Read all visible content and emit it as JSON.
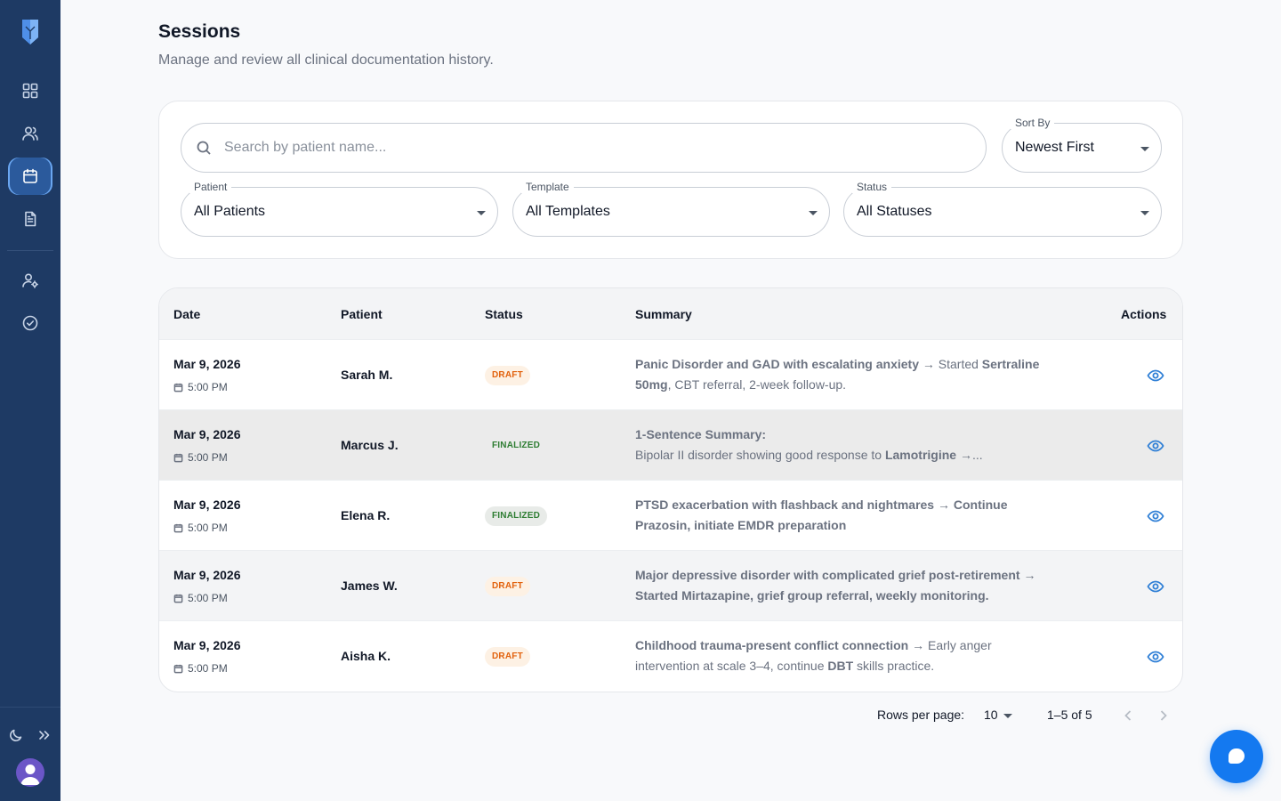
{
  "header": {
    "title": "Sessions",
    "subtitle": "Manage and review all clinical documentation history."
  },
  "sidebar": {
    "nav": [
      {
        "name": "dashboard",
        "icon": "grid-icon"
      },
      {
        "name": "patients",
        "icon": "users-icon"
      },
      {
        "name": "sessions",
        "icon": "calendar-icon",
        "active": true
      },
      {
        "name": "documents",
        "icon": "document-icon"
      },
      {
        "name": "user-settings",
        "icon": "user-gear-icon"
      },
      {
        "name": "tasks",
        "icon": "check-circle-icon"
      }
    ],
    "bottom": [
      "moon-icon",
      "chevrons-right-icon",
      "avatar"
    ]
  },
  "filters": {
    "search_placeholder": "Search by patient name...",
    "sort": {
      "label": "Sort By",
      "value": "Newest First"
    },
    "patient": {
      "label": "Patient",
      "value": "All Patients"
    },
    "template": {
      "label": "Template",
      "value": "All Templates"
    },
    "status": {
      "label": "Status",
      "value": "All Statuses"
    }
  },
  "table": {
    "headers": {
      "date": "Date",
      "patient": "Patient",
      "status": "Status",
      "summary": "Summary",
      "actions": "Actions"
    },
    "rows": [
      {
        "date": "Mar 9, 2026",
        "time": "5:00 PM",
        "patient": "Sarah M.",
        "status": "DRAFT",
        "summary": [
          {
            "t": "Panic Disorder and GAD with escalating anxiety",
            "b": true
          },
          {
            "t": " → Started ",
            "b": false
          },
          {
            "t": "Sertraline 50mg",
            "b": true
          },
          {
            "t": ", CBT referral, 2-week follow-up.",
            "b": false
          }
        ]
      },
      {
        "date": "Mar 9, 2026",
        "time": "5:00 PM",
        "patient": "Marcus J.",
        "status": "FINALIZED",
        "summary": [
          {
            "t": "1-Sentence Summary:",
            "b": true,
            "br": true
          },
          {
            "t": "Bipolar II disorder showing good response to ",
            "b": false
          },
          {
            "t": "Lamotrigine",
            "b": true
          },
          {
            "t": " →...",
            "b": false
          }
        ]
      },
      {
        "date": "Mar 9, 2026",
        "time": "5:00 PM",
        "patient": "Elena R.",
        "status": "FINALIZED",
        "summary": [
          {
            "t": "PTSD exacerbation with flashback and nightmares → Continue Prazosin, initiate EMDR preparation",
            "b": true
          }
        ]
      },
      {
        "date": "Mar 9, 2026",
        "time": "5:00 PM",
        "patient": "James W.",
        "status": "DRAFT",
        "summary": [
          {
            "t": "Major depressive disorder with complicated grief post-retirement → Started Mirtazapine, grief group referral, weekly monitoring.",
            "b": true
          }
        ]
      },
      {
        "date": "Mar 9, 2026",
        "time": "5:00 PM",
        "patient": "Aisha K.",
        "status": "DRAFT",
        "summary": [
          {
            "t": "Childhood trauma-present conflict connection",
            "b": true
          },
          {
            "t": " → Early anger intervention at scale 3–4, continue ",
            "b": false
          },
          {
            "t": "DBT",
            "b": true
          },
          {
            "t": " skills practice.",
            "b": false
          }
        ]
      }
    ]
  },
  "pagination": {
    "rows_per_page_label": "Rows per page:",
    "rows_per_page": "10",
    "range": "1–5 of 5"
  },
  "colors": {
    "sidebar": "#1e3a64",
    "accent": "#1479f0",
    "draft": "#e2620e",
    "finalized": "#2e7d32"
  }
}
